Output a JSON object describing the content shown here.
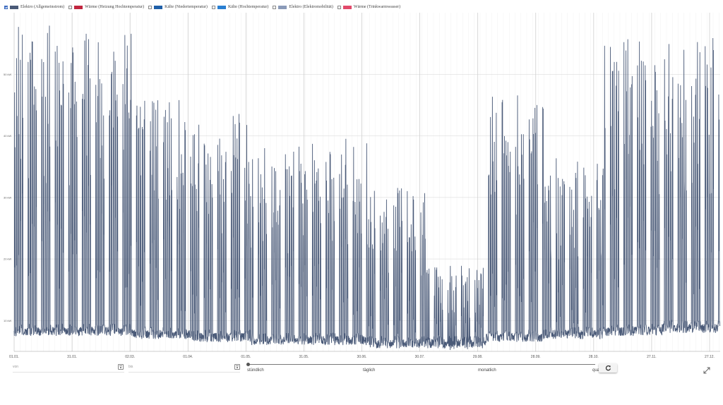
{
  "legend": [
    {
      "label": "Elektro (Allgemeinstrom)",
      "checked": true,
      "color": "#4a5a78"
    },
    {
      "label": "Wärme (Heizung Hochtemperatur)",
      "checked": false,
      "color": "#c1263f"
    },
    {
      "label": "Kälte (Niedertemperatur)",
      "checked": false,
      "color": "#1f5fa8"
    },
    {
      "label": "Kälte (Hochtemperatur)",
      "checked": false,
      "color": "#2a7fd1"
    },
    {
      "label": "Elektro (Elektromobilität)",
      "checked": false,
      "color": "#8a9ab8"
    },
    {
      "label": "Wärme (Trinkwarmwasser)",
      "checked": false,
      "color": "#e24a6a"
    }
  ],
  "controls": {
    "from_placeholder": "von",
    "to_placeholder": "bis",
    "resolution_options": [
      "stündlich",
      "täglich",
      "monatlich",
      "quartal"
    ],
    "reset_icon": "reset-icon",
    "expand_icon": "expand-icon"
  },
  "chart_data": {
    "type": "line",
    "series": [
      {
        "name": "Elektro (Allgemeinstrom)",
        "color": "#4a5a78"
      }
    ],
    "x_range": [
      "01.01.",
      "31.12."
    ],
    "x_ticks": [
      "01.01.",
      "31.01.",
      "02.03.",
      "01.04.",
      "01.05.",
      "31.05.",
      "30.06.",
      "30.07.",
      "29.08.",
      "28.09.",
      "28.10.",
      "27.11.",
      "27.12."
    ],
    "y_ticks": [
      10,
      20,
      30,
      40,
      50
    ],
    "y_unit": "kW",
    "ylim": [
      5,
      60
    ],
    "grid": true,
    "resolution": "stündlich",
    "weekly_profile": [
      {
        "period": "01.01.–31.01.",
        "peak_kw": 57,
        "base_kw": 7.5
      },
      {
        "period": "31.01.–02.03.",
        "peak_kw": 57,
        "base_kw": 7.5
      },
      {
        "period": "02.03.–01.04.",
        "peak_kw": 46,
        "base_kw": 7
      },
      {
        "period": "01.04.–01.05.",
        "peak_kw": 43,
        "base_kw": 6.5
      },
      {
        "period": "01.05.–31.05.",
        "peak_kw": 38,
        "base_kw": 6
      },
      {
        "period": "31.05.–30.06.",
        "peak_kw": 40,
        "base_kw": 6
      },
      {
        "period": "30.06.–30.07.",
        "peak_kw": 31,
        "base_kw": 5.5
      },
      {
        "period": "30.07.–29.08.",
        "peak_kw": 19,
        "base_kw": 5.5
      },
      {
        "period": "29.08.–28.09.",
        "peak_kw": 46,
        "base_kw": 6.5
      },
      {
        "period": "28.09.–28.10.",
        "peak_kw": 36,
        "base_kw": 7
      },
      {
        "period": "28.10.–27.11.",
        "peak_kw": 55,
        "base_kw": 7.5
      },
      {
        "period": "27.11.–31.12.",
        "peak_kw": 55,
        "base_kw": 8
      }
    ]
  }
}
